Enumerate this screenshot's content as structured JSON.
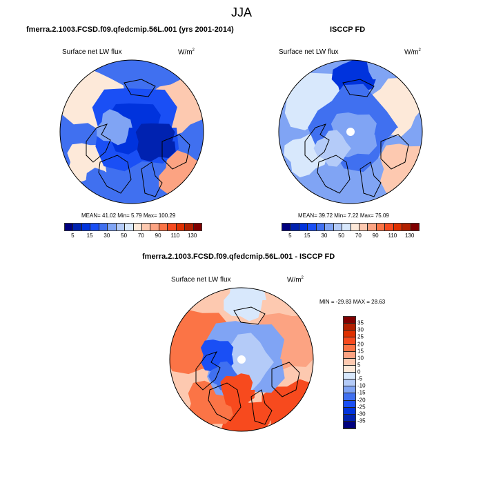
{
  "title": "JJA",
  "panels": [
    {
      "title": "fmerra.2.1003.FCSD.f09.qfedcmip.56L.001 (yrs 2001-2014)",
      "variable": "Surface net LW flux",
      "units": "W/m",
      "units_sup": "2",
      "stats": "MEAN=  41.02  Min=   5.79  Max= 100.29"
    },
    {
      "title": "ISCCP FD",
      "variable": "Surface net LW flux",
      "units": "W/m",
      "units_sup": "2",
      "stats": "MEAN=  39.72  Min=   7.22  Max=  75.09"
    },
    {
      "title": "fmerra.2.1003.FCSD.f09.qfedcmip.56L.001 - ISCCP FD",
      "variable": "Surface net LW flux",
      "units": "W/m",
      "units_sup": "2",
      "stats": "MIN = -29.83 MAX =  28.63"
    }
  ],
  "colorbar_abs": {
    "labels": [
      "5",
      "15",
      "30",
      "50",
      "70",
      "90",
      "110",
      "130"
    ],
    "levels": [
      5,
      10,
      15,
      20,
      30,
      40,
      50,
      60,
      70,
      80,
      90,
      100,
      110,
      120,
      130
    ]
  },
  "colorbar_diff": {
    "labels": [
      "35",
      "30",
      "25",
      "20",
      "15",
      "10",
      "5",
      "0",
      "-5",
      "-10",
      "-15",
      "-20",
      "-25",
      "-30",
      "-35"
    ],
    "levels": [
      -35,
      -30,
      -25,
      -20,
      -15,
      -10,
      -5,
      0,
      5,
      10,
      15,
      20,
      25,
      30,
      35
    ]
  },
  "palette": [
    "#00007f",
    "#0022b0",
    "#0033dd",
    "#1a4ff5",
    "#4070f0",
    "#80a4f4",
    "#b4cbf8",
    "#d8e8fc",
    "#fde9d9",
    "#fdc9b0",
    "#fca382",
    "#fb7446",
    "#f74a1e",
    "#df3000",
    "#b22000",
    "#800000"
  ]
}
